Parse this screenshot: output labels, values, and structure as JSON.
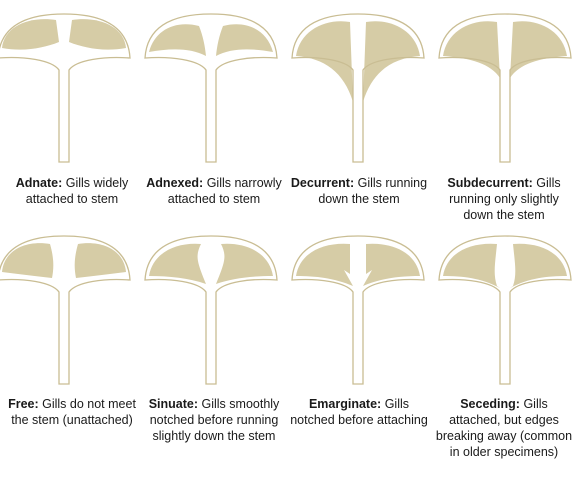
{
  "colors": {
    "gill_fill": "#d6cca6",
    "outline": "#c9bd93",
    "text": "#1a1a1a"
  },
  "diagrams": [
    {
      "id": "adnate",
      "term": "Adnate:",
      "desc": "Gills widely attached to stem"
    },
    {
      "id": "adnexed",
      "term": "Adnexed:",
      "desc": "Gills narrowly attached to stem"
    },
    {
      "id": "decurrent",
      "term": "Decurrent:",
      "desc": "Gills running down the stem"
    },
    {
      "id": "subdecurrent",
      "term": "Subdecurrent:",
      "desc": "Gills running only slightly down the stem"
    },
    {
      "id": "free",
      "term": "Free:",
      "desc": "Gills do not meet the stem (unattached)"
    },
    {
      "id": "sinuate",
      "term": "Sinuate:",
      "desc": "Gills smoothly notched before running slightly down the stem"
    },
    {
      "id": "emarginate",
      "term": "Emarginate:",
      "desc": "Gills notched before attaching"
    },
    {
      "id": "seceding",
      "term": "Seceding:",
      "desc": "Gills attached, but edges breaking away (common in older specimens)"
    }
  ]
}
